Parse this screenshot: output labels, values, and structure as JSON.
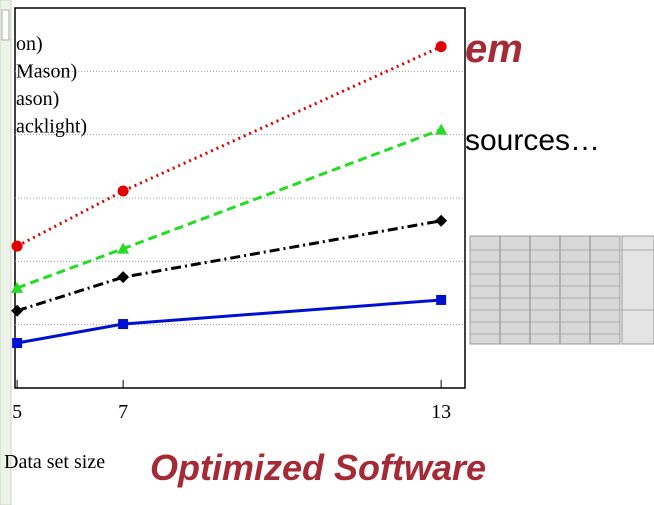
{
  "chart_data": {
    "type": "line",
    "x_label": "Data set size",
    "xlim": [
      4.96,
      13.45
    ],
    "xticks": [
      5,
      7,
      13
    ],
    "ylim": [
      0,
      6
    ],
    "ygrid": [
      1,
      2,
      3,
      4,
      5
    ],
    "series": [
      {
        "name": "on)",
        "color": "#e00000",
        "marker": "circle",
        "dash": "dotted",
        "x": [
          5,
          7,
          13
        ],
        "values": [
          2.24,
          3.11,
          5.39
        ]
      },
      {
        "name": "Mason)",
        "color": "#22dd22",
        "marker": "triangle",
        "dash": "dashed",
        "x": [
          5,
          7,
          13
        ],
        "values": [
          1.58,
          2.2,
          4.08
        ]
      },
      {
        "name": "ason)",
        "color": "#000000",
        "marker": "diamond",
        "dash": "dashdot",
        "x": [
          5,
          7,
          13
        ],
        "values": [
          1.22,
          1.75,
          2.64
        ]
      },
      {
        "name": "acklight)",
        "color": "#0010d0",
        "marker": "square",
        "dash": "solid",
        "x": [
          5,
          7,
          13
        ],
        "values": [
          0.71,
          1.01,
          1.39
        ]
      }
    ]
  },
  "slide": {
    "title_fragment": "em",
    "bullet_fragment": "sources…",
    "subtitle": "Optimized Software"
  }
}
